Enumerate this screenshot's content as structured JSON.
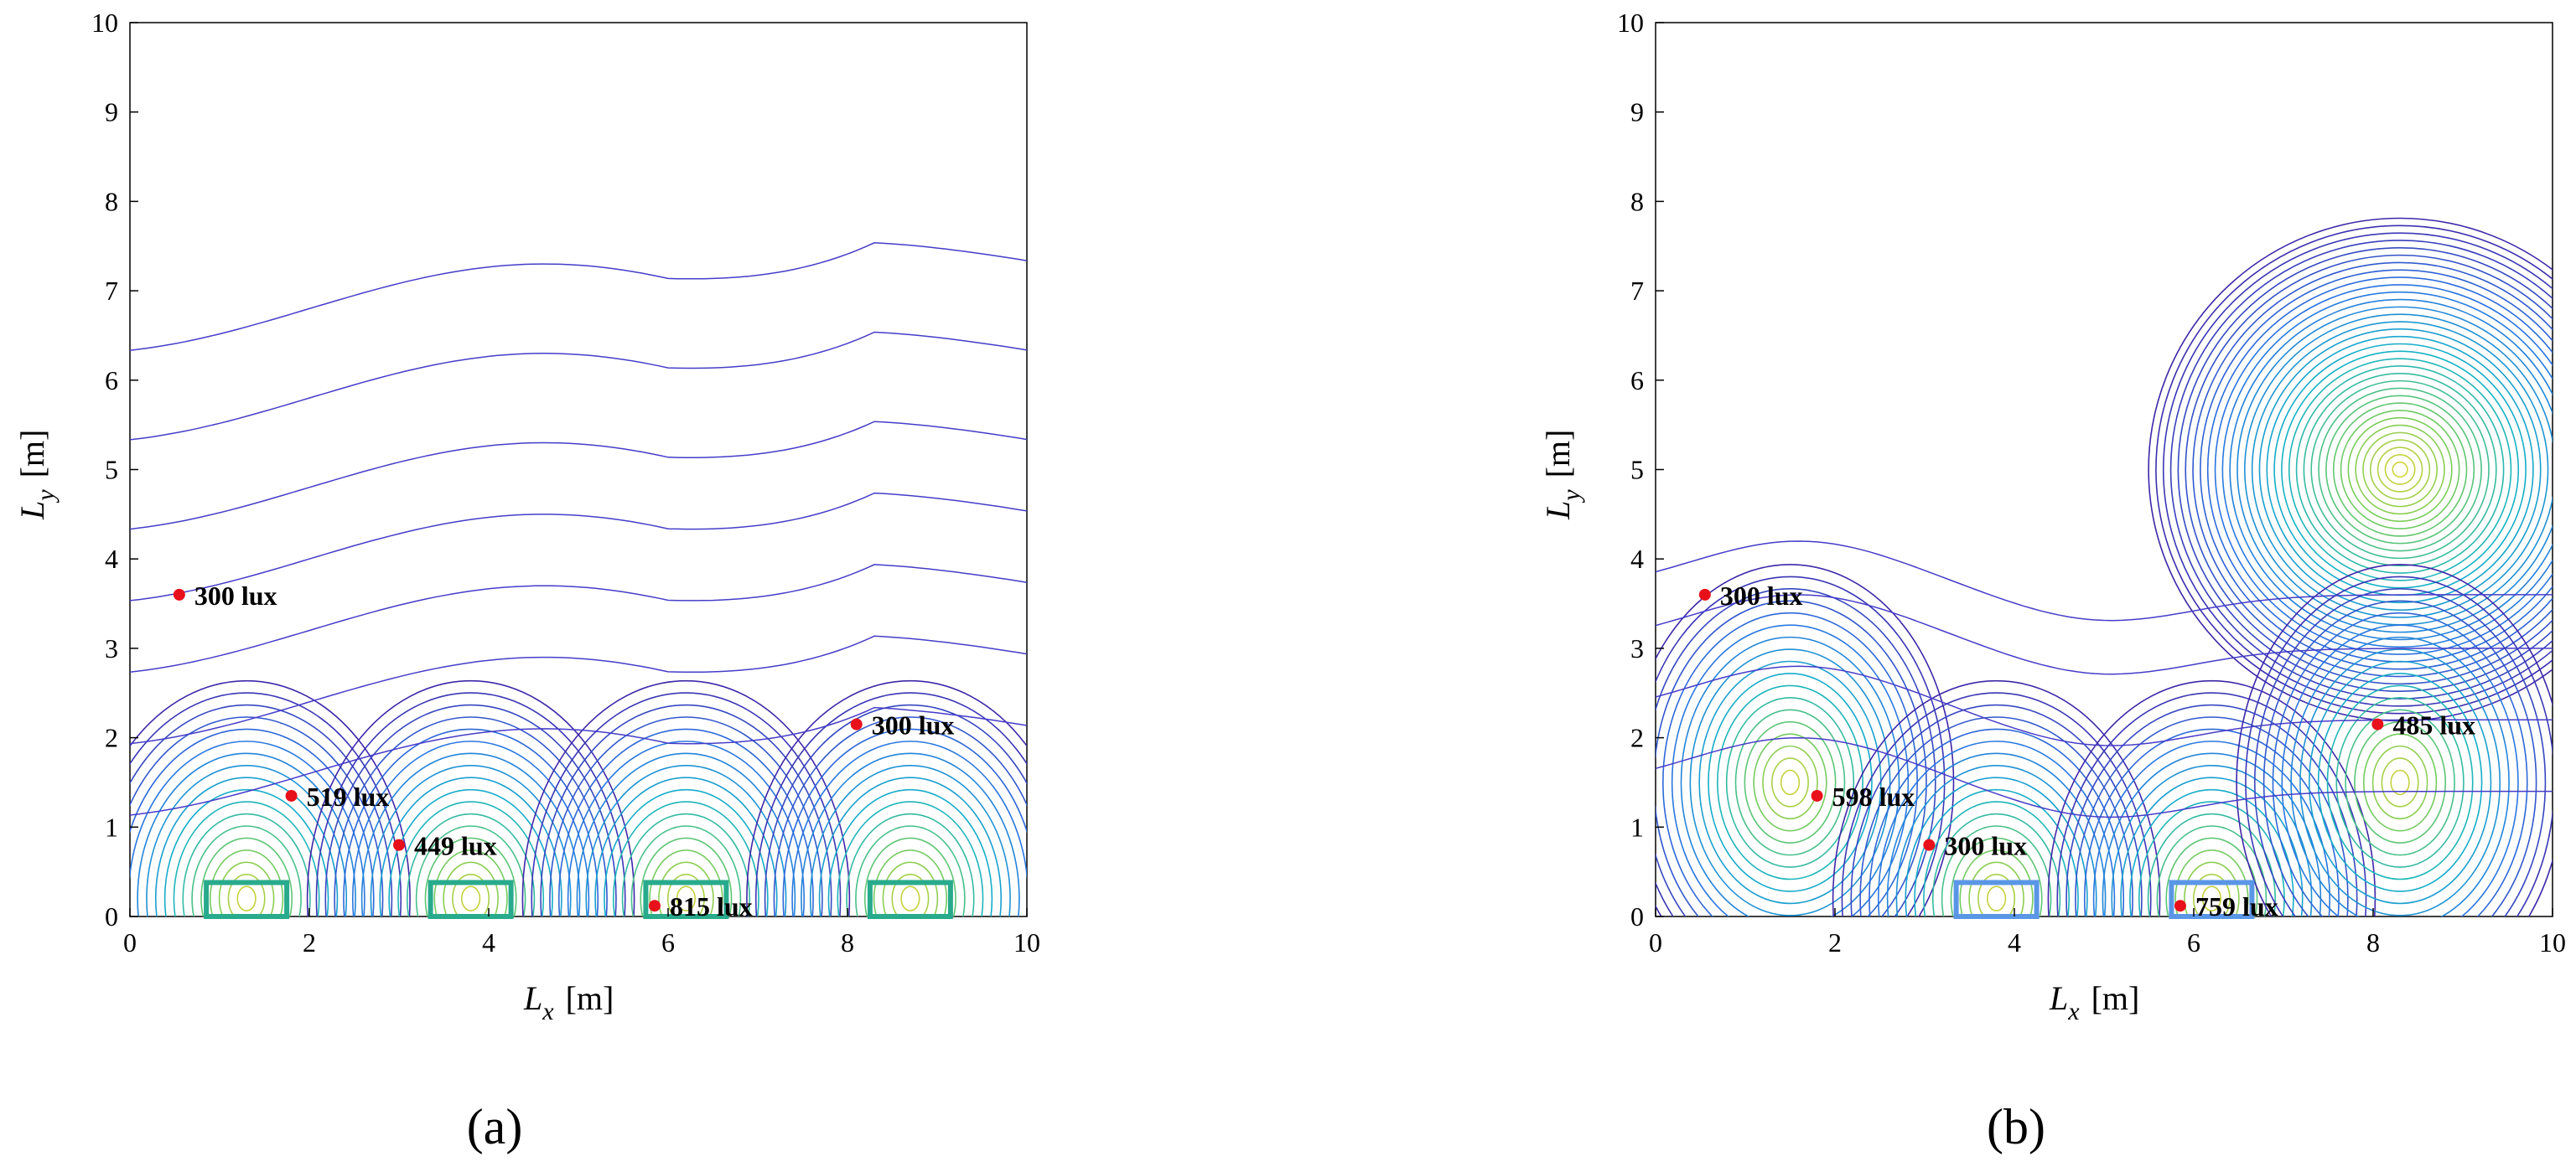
{
  "chart_data": [
    {
      "type": "contour",
      "panel_label": "(a)",
      "xlabel_main": "L",
      "xlabel_sub": "x",
      "xlabel_unit": "[m]",
      "ylabel_main": "L",
      "ylabel_sub": "y",
      "ylabel_unit": "[m]",
      "xlim": [
        0,
        10
      ],
      "ylim": [
        0,
        10
      ],
      "xticks": [
        "0",
        "2",
        "4",
        "6",
        "8",
        "10"
      ],
      "yticks": [
        "0",
        "1",
        "2",
        "3",
        "4",
        "5",
        "6",
        "7",
        "8",
        "9",
        "10"
      ],
      "grid": false,
      "sources": [
        {
          "x": 1.3,
          "y": 0.2
        },
        {
          "x": 3.8,
          "y": 0.2
        },
        {
          "x": 6.2,
          "y": 0.2
        },
        {
          "x": 8.7,
          "y": 0.2
        }
      ],
      "annotations": [
        {
          "x": 0.55,
          "y": 3.6,
          "text": "300 lux"
        },
        {
          "x": 8.1,
          "y": 2.15,
          "text": "300 lux"
        },
        {
          "x": 1.8,
          "y": 1.35,
          "text": "519 lux"
        },
        {
          "x": 3.0,
          "y": 0.8,
          "text": "449 lux"
        },
        {
          "x": 5.85,
          "y": 0.12,
          "text": "815 lux"
        }
      ]
    },
    {
      "type": "contour",
      "panel_label": "(b)",
      "xlabel_main": "L",
      "xlabel_sub": "x",
      "xlabel_unit": "[m]",
      "ylabel_main": "L",
      "ylabel_sub": "y",
      "ylabel_unit": "[m]",
      "xlim": [
        0,
        10
      ],
      "ylim": [
        0,
        10
      ],
      "xticks": [
        "0",
        "2",
        "4",
        "6",
        "8",
        "10"
      ],
      "yticks": [
        "0",
        "1",
        "2",
        "3",
        "4",
        "5",
        "6",
        "7",
        "8",
        "9",
        "10"
      ],
      "grid": false,
      "sources": [
        {
          "x": 1.5,
          "y": 1.5
        },
        {
          "x": 3.8,
          "y": 0.2
        },
        {
          "x": 6.2,
          "y": 0.2
        },
        {
          "x": 8.3,
          "y": 5.0
        },
        {
          "x": 8.3,
          "y": 1.5
        }
      ],
      "annotations": [
        {
          "x": 0.55,
          "y": 3.6,
          "text": "300 lux"
        },
        {
          "x": 8.05,
          "y": 2.15,
          "text": "485 lux"
        },
        {
          "x": 1.8,
          "y": 1.35,
          "text": "598 lux"
        },
        {
          "x": 3.05,
          "y": 0.8,
          "text": "300 lux"
        },
        {
          "x": 5.85,
          "y": 0.12,
          "text": "759 lux"
        }
      ]
    }
  ]
}
